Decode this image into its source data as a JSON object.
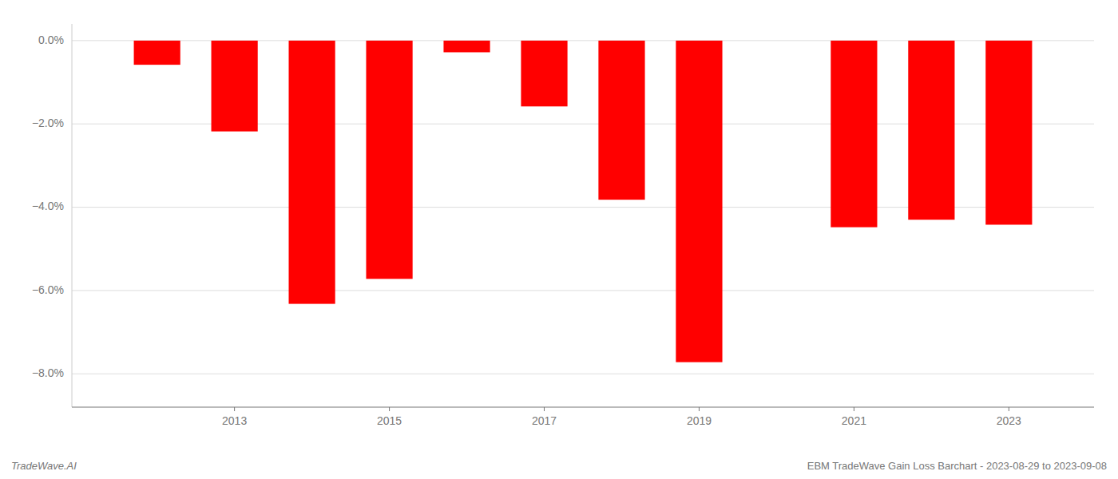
{
  "chart_data": {
    "type": "bar",
    "title": "EBM TradeWave Gain Loss Barchart - 2023-08-29 to 2023-09-08",
    "annotations": [
      "TradeWave.AI"
    ],
    "x": [
      2012,
      2013,
      2014,
      2015,
      2016,
      2017,
      2018,
      2019,
      2021,
      2022,
      2023
    ],
    "values": [
      -0.58,
      -2.18,
      -6.32,
      -5.72,
      -0.28,
      -1.58,
      -3.82,
      -7.72,
      -4.48,
      -4.3,
      -4.42
    ],
    "color": "#ff0000",
    "xlim": [
      2010.9,
      2024.1
    ],
    "xticks": [
      2013,
      2015,
      2017,
      2019,
      2021,
      2023
    ],
    "ylim": [
      -8.8,
      0.4
    ],
    "yticks": [
      {
        "value": 0.0,
        "label": "0.0%"
      },
      {
        "value": -2.0,
        "label": "−2.0%"
      },
      {
        "value": -4.0,
        "label": "−4.0%"
      },
      {
        "value": -6.0,
        "label": "−6.0%"
      },
      {
        "value": -8.0,
        "label": "−8.0%"
      }
    ],
    "grid": true
  }
}
